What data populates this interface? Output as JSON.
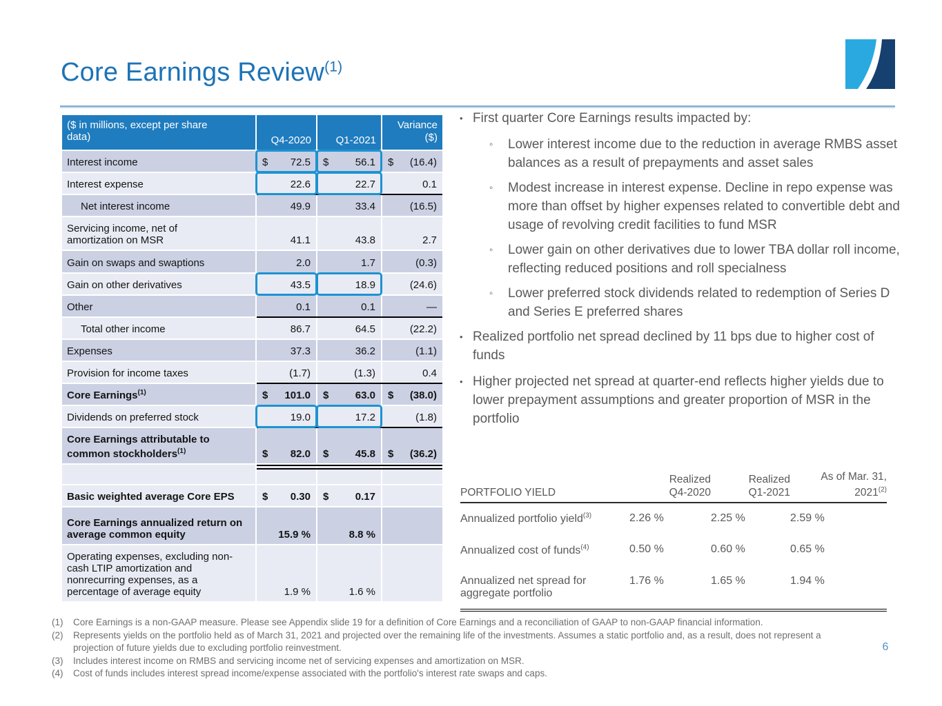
{
  "slide": {
    "title": "Core Earnings Review",
    "title_sup": "(1)",
    "page_number": "6",
    "bullet_char": "•",
    "sub_bullet_char": "◦"
  },
  "colors": {
    "title_blue": "#1D73B6",
    "table_header_blue": "#1F7CBF",
    "row_shade_dark": "#CBD0E3",
    "row_shade_light": "#E9EBF4",
    "callout_blue": "#1C93D2",
    "body_text_gray": "#58595B",
    "footnote_gray": "#6D6E71",
    "page_number_blue": "#4D8FC9",
    "logo_light_blue": "#29A9E0",
    "logo_navy": "#16406F",
    "separator_blue": "#7FA9CF"
  },
  "main_table": {
    "header": {
      "label": "($ in millions, except per share\ndata)",
      "col1": "Q4-2020",
      "col2": "Q1-2021",
      "col3": "Variance\n($)"
    },
    "rows": [
      {
        "label": "Interest income",
        "d1": "$",
        "v1": "72.5",
        "d2": "$",
        "v2": "56.1",
        "d3": "$",
        "v3": "(16.4)"
      },
      {
        "label": "Interest expense",
        "v1": "22.6",
        "v2": "22.7",
        "v3": "0.1"
      },
      {
        "label": "Net interest income",
        "indent": true,
        "v1": "49.9",
        "v2": "33.4",
        "v3": "(16.5)"
      },
      {
        "label": "Servicing income, net of\namortization on MSR",
        "v1": "41.1",
        "v2": "43.8",
        "v3": "2.7"
      },
      {
        "label": "Gain on swaps and swaptions",
        "v1": "2.0",
        "v2": "1.7",
        "v3": "(0.3)"
      },
      {
        "label": "Gain on other derivatives",
        "v1": "43.5",
        "v2": "18.9",
        "v3": "(24.6)"
      },
      {
        "label": "Other",
        "v1": "0.1",
        "v2": "0.1",
        "v3": "—"
      },
      {
        "label": "Total other income",
        "indent": true,
        "v1": "86.7",
        "v2": "64.5",
        "v3": "(22.2)"
      },
      {
        "label": "Expenses",
        "v1": "37.3",
        "v2": "36.2",
        "v3": "(1.1)"
      },
      {
        "label": "Provision for income taxes",
        "v1": "(1.7)",
        "v2": "(1.3)",
        "v3": "0.4"
      },
      {
        "label": "Core Earnings",
        "sup": "(1)",
        "d1": "$",
        "v1": "101.0",
        "d2": "$",
        "v2": "63.0",
        "d3": "$",
        "v3": "(38.0)"
      },
      {
        "label": "Dividends on preferred stock",
        "v1": "19.0",
        "v2": "17.2",
        "v3": "(1.8)"
      },
      {
        "label": "Core Earnings attributable to\ncommon stockholders",
        "sup": "(1)",
        "d1": "$",
        "v1": "82.0",
        "d2": "$",
        "v2": "45.8",
        "d3": "$",
        "v3": "(36.2)"
      },
      {
        "label": "",
        "v1": "",
        "v2": "",
        "v3": ""
      },
      {
        "label": "Basic weighted average Core EPS",
        "d1": "$",
        "v1": "0.30",
        "d2": "$",
        "v2": "0.17",
        "v3": ""
      },
      {
        "label": "Core Earnings annualized return on\naverage common equity",
        "v1": "15.9 %",
        "v2": "8.8 %",
        "v3": ""
      },
      {
        "label": "Operating expenses, excluding non-\ncash LTIP amortization and\nnonrecurring expenses, as a\npercentage of average equity",
        "v1": "1.9 %",
        "v2": "1.6 %",
        "v3": ""
      }
    ]
  },
  "bullets": [
    {
      "text": "First quarter Core Earnings results impacted by:",
      "subs": [
        "Lower interest income due to the reduction in average RMBS asset balances as a result of prepayments and asset sales",
        "Modest increase in interest expense. Decline in repo expense was more than offset by higher expenses related to convertible debt and usage of revolving credit facilities to fund MSR",
        "Lower gain on other derivatives due to lower TBA dollar roll income, reflecting reduced positions and roll specialness",
        "Lower preferred stock dividends related to redemption of Series D and Series E preferred shares"
      ]
    },
    {
      "text": "Realized portfolio net spread declined by 11 bps due to higher cost of funds",
      "subs": []
    },
    {
      "text": "Higher projected net spread at quarter-end reflects higher yields due to lower prepayment assumptions and greater proportion of MSR in the portfolio",
      "subs": []
    }
  ],
  "portfolio_table": {
    "title": "PORTFOLIO YIELD",
    "columns": [
      {
        "text": "Realized\nQ4-2020",
        "sup": ""
      },
      {
        "text": "Realized\nQ1-2021",
        "sup": ""
      },
      {
        "text": "As of Mar. 31,\n2021",
        "sup": "(2)"
      }
    ],
    "rows": [
      {
        "label": "Annualized portfolio yield",
        "sup": "(3)",
        "values": [
          "2.26 %",
          "2.25 %",
          "2.59 %"
        ]
      },
      {
        "label": "Annualized cost of funds",
        "sup": "(4)",
        "values": [
          "0.50 %",
          "0.60 %",
          "0.65 %"
        ]
      },
      {
        "label": "Annualized net spread for\naggregate portfolio",
        "sup": "",
        "values": [
          "1.76 %",
          "1.65 %",
          "1.94 %"
        ]
      }
    ]
  },
  "footnotes": [
    {
      "num": "(1)",
      "text": "Core Earnings is a non-GAAP measure. Please see Appendix slide 19 for a definition of Core Earnings and a reconciliation of GAAP to non-GAAP financial information."
    },
    {
      "num": "(2)",
      "text": "Represents yields on the portfolio held as of March 31, 2021 and projected over the remaining life of the investments. Assumes a static portfolio and, as a result, does not represent a projection of future yields due to excluding portfolio reinvestment."
    },
    {
      "num": "(3)",
      "text": "Includes interest income on RMBS and servicing income net of servicing expenses and amortization on MSR."
    },
    {
      "num": "(4)",
      "text": "Cost of funds includes interest spread income/expense associated with the portfolio's interest rate swaps and caps."
    }
  ]
}
